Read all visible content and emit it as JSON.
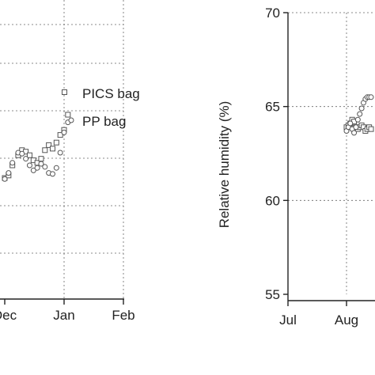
{
  "chart_data": [
    {
      "type": "scatter",
      "x_ticks": [
        "Dec",
        "Jan",
        "Feb"
      ],
      "grid": true,
      "legend_position": "right",
      "series": [
        {
          "name": "PICS bag",
          "marker": "square",
          "points": [
            [
              "Dec 1",
              0.2
            ],
            [
              "Dec 3",
              0.25
            ],
            [
              "Dec 5",
              0.45
            ],
            [
              "Dec 8",
              0.65
            ],
            [
              "Dec 10",
              0.75
            ],
            [
              "Dec 12",
              0.72
            ],
            [
              "Dec 14",
              0.65
            ],
            [
              "Dec 16",
              0.55
            ],
            [
              "Dec 18",
              0.5
            ],
            [
              "Dec 20",
              0.58
            ],
            [
              "Dec 22",
              0.75
            ],
            [
              "Dec 24",
              0.85
            ],
            [
              "Dec 26",
              0.78
            ],
            [
              "Dec 28",
              0.9
            ],
            [
              "Dec 30",
              1.05
            ],
            [
              "Jan 1",
              1.15
            ],
            [
              "Jan 3",
              1.45
            ]
          ]
        },
        {
          "name": "PP bag",
          "marker": "circle",
          "points": [
            [
              "Dec 1",
              0.18
            ],
            [
              "Dec 3",
              0.3
            ],
            [
              "Dec 5",
              0.5
            ],
            [
              "Dec 8",
              0.7
            ],
            [
              "Dec 10",
              0.68
            ],
            [
              "Dec 12",
              0.58
            ],
            [
              "Dec 14",
              0.45
            ],
            [
              "Dec 16",
              0.35
            ],
            [
              "Dec 18",
              0.4
            ],
            [
              "Dec 20",
              0.48
            ],
            [
              "Dec 22",
              0.42
            ],
            [
              "Dec 24",
              0.3
            ],
            [
              "Dec 26",
              0.28
            ],
            [
              "Dec 28",
              0.4
            ],
            [
              "Dec 30",
              0.7
            ],
            [
              "Jan 1",
              1.1
            ],
            [
              "Jan 3",
              1.3
            ]
          ]
        }
      ]
    },
    {
      "type": "scatter",
      "ylabel": "Relative humidity (%)",
      "ylim": [
        55,
        70
      ],
      "y_ticks": [
        55,
        60,
        65,
        70
      ],
      "x_ticks": [
        "Jul",
        "Aug"
      ],
      "grid": true,
      "series": [
        {
          "marker": "square",
          "points": [
            [
              "Aug 1",
              63.9
            ],
            [
              "Aug 2",
              64.0
            ],
            [
              "Aug 3",
              64.1
            ],
            [
              "Aug 4",
              64.3
            ],
            [
              "Aug 5",
              64.2
            ],
            [
              "Aug 6",
              63.9
            ],
            [
              "Aug 7",
              63.8
            ],
            [
              "Aug 8",
              63.9
            ],
            [
              "Aug 9",
              64.0
            ],
            [
              "Aug 10",
              63.9
            ],
            [
              "Aug 11",
              63.7
            ],
            [
              "Aug 12",
              63.8
            ],
            [
              "Aug 13",
              63.9
            ],
            [
              "Aug 14",
              63.8
            ]
          ]
        },
        {
          "marker": "circle",
          "points": [
            [
              "Aug 1",
              63.7
            ],
            [
              "Aug 2",
              63.9
            ],
            [
              "Aug 3",
              64.1
            ],
            [
              "Aug 4",
              63.8
            ],
            [
              "Aug 5",
              63.6
            ],
            [
              "Aug 6",
              63.9
            ],
            [
              "Aug 7",
              64.3
            ],
            [
              "Aug 8",
              64.6
            ],
            [
              "Aug 9",
              64.9
            ],
            [
              "Aug 10",
              65.2
            ],
            [
              "Aug 11",
              65.4
            ],
            [
              "Aug 12",
              65.5
            ],
            [
              "Aug 13",
              65.5
            ],
            [
              "Aug 14",
              65.5
            ]
          ]
        }
      ]
    }
  ]
}
